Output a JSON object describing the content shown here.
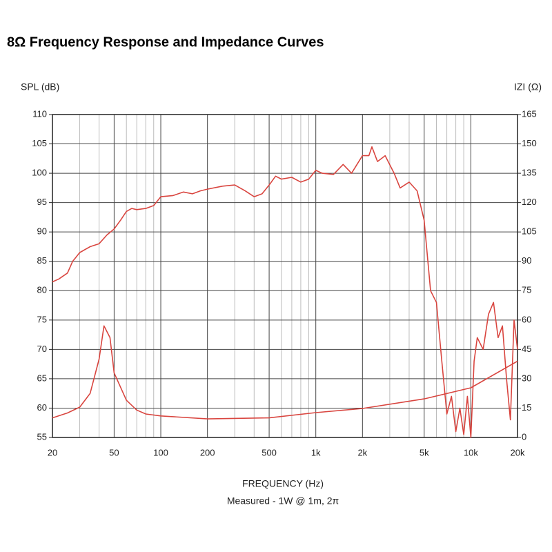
{
  "chart_data": {
    "type": "line",
    "title": "8Ω Frequency Response and Impedance Curves",
    "ylabel": "SPL (dB)",
    "y2label": "IZI (Ω)",
    "xlabel": "FREQUENCY (Hz)",
    "subtitle": "Measured - 1W @ 1m, 2π",
    "xscale": "log",
    "grid": true,
    "xlim": [
      20,
      20000
    ],
    "xticks": [
      20,
      50,
      100,
      200,
      500,
      {
        "value": 1000,
        "label": "1k"
      },
      {
        "value": 2000,
        "label": "2k"
      },
      {
        "value": 5000,
        "label": "5k"
      },
      {
        "value": 10000,
        "label": "10k"
      },
      {
        "value": 20000,
        "label": "20k"
      }
    ],
    "xminorgrid": [
      30,
      40,
      60,
      70,
      80,
      90,
      300,
      400,
      600,
      700,
      800,
      900,
      3000,
      4000,
      6000,
      7000,
      8000,
      9000
    ],
    "ylim": [
      55,
      110
    ],
    "yticks": [
      55,
      60,
      65,
      70,
      75,
      80,
      85,
      90,
      95,
      100,
      105,
      110
    ],
    "y2lim": [
      0,
      165
    ],
    "y2ticks": [
      0,
      15,
      30,
      45,
      60,
      75,
      90,
      105,
      120,
      135,
      150,
      165
    ],
    "series": [
      {
        "color": "#d9453f",
        "x": [
          20,
          22,
          25,
          27,
          30,
          35,
          40,
          45,
          50,
          55,
          60,
          65,
          70,
          80,
          90,
          100,
          120,
          140,
          160,
          180,
          200,
          250,
          300,
          350,
          400,
          450,
          500,
          550,
          600,
          700,
          800,
          900,
          1000,
          1100,
          1300,
          1500,
          1700,
          2000,
          2200,
          2300,
          2500,
          2800,
          3200,
          3500,
          4000,
          4500,
          5000,
          5500,
          6000,
          6500,
          7000,
          7500,
          8000,
          8500,
          9000,
          9500,
          10000,
          10500,
          11000,
          12000,
          13000,
          14000,
          15000,
          16000,
          17000,
          18000,
          19000,
          20000
        ],
        "values": [
          81.5,
          82,
          83,
          85,
          86.5,
          87.5,
          88,
          89.5,
          90.5,
          92,
          93.5,
          94,
          93.8,
          94,
          94.5,
          96,
          96.2,
          96.8,
          96.5,
          97,
          97.3,
          97.8,
          98,
          97,
          96,
          96.5,
          98,
          99.5,
          99,
          99.3,
          98.5,
          99,
          100.5,
          100,
          99.8,
          101.5,
          100,
          103,
          103,
          104.5,
          102,
          103,
          100,
          97.5,
          98.5,
          97,
          92,
          80,
          78,
          68,
          59,
          62,
          56,
          60,
          55.5,
          62,
          55,
          68,
          72,
          70,
          76,
          78,
          72,
          74,
          65,
          58,
          75,
          70
        ]
      },
      {
        "color": "#d9453f",
        "axis": "y2",
        "x": [
          20,
          25,
          30,
          35,
          40,
          43,
          47,
          50,
          60,
          70,
          80,
          100,
          200,
          500,
          1000,
          2000,
          5000,
          10000,
          20000
        ],
        "values": [
          10,
          12.5,
          15.5,
          22.5,
          40,
          57,
          51,
          33,
          19,
          14,
          12,
          11,
          9.5,
          10,
          12.7,
          14.8,
          19.7,
          25.4,
          39
        ]
      }
    ]
  }
}
